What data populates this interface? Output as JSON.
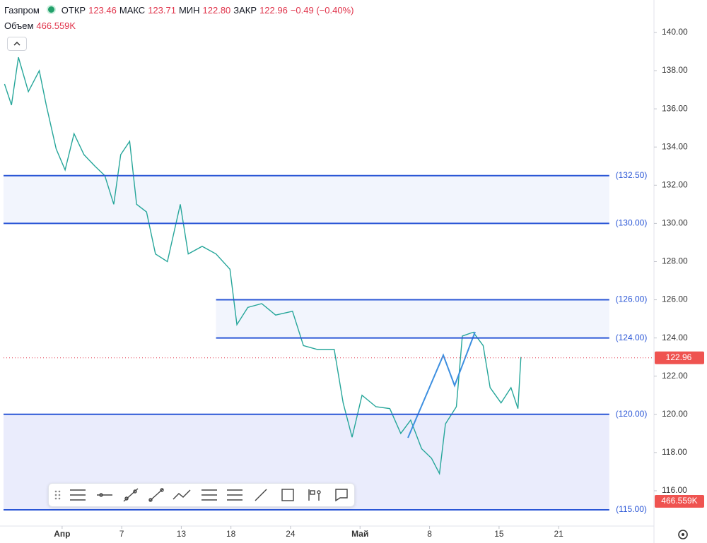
{
  "header": {
    "symbol": "Газпром",
    "open_label": "ОТКР",
    "open": "123.46",
    "high_label": "МАКС",
    "high": "123.71",
    "low_label": "МИН",
    "low": "122.80",
    "close_label": "ЗАКР",
    "close": "122.96",
    "change": "−0.49 (−0.40%)",
    "volume_label": "Объем",
    "volume": "466.559K"
  },
  "chart_data": {
    "type": "line",
    "color": "#26a69a",
    "x": [
      -4.8,
      -4.1,
      -3.4,
      -2.4,
      -1.3,
      -0.6,
      0.4,
      1.3,
      2.2,
      3.2,
      4.3,
      5.3,
      6.2,
      6.9,
      7.8,
      8.5,
      9.5,
      10.4,
      11.6,
      12.9,
      13.7,
      15.1,
      16.5,
      17.9,
      18.6,
      19.7,
      21.1,
      22.5,
      24.2,
      25.3,
      26.7,
      28.4,
      29.3,
      30.2,
      31.2,
      32.6,
      34.0,
      35.1,
      36.1,
      37.2,
      38.2,
      39.0,
      39.6,
      40.7,
      41.3,
      42.4,
      43.4,
      44.1,
      45.2,
      46.2,
      46.9,
      47.2
    ],
    "values": [
      137.3,
      136.2,
      138.7,
      136.9,
      138.0,
      136.2,
      133.9,
      132.8,
      134.7,
      133.6,
      133.0,
      132.5,
      131.0,
      133.6,
      134.3,
      131.0,
      130.6,
      128.4,
      128.0,
      131.0,
      128.4,
      128.8,
      128.4,
      127.6,
      124.7,
      125.6,
      125.8,
      125.2,
      125.4,
      123.6,
      123.4,
      123.4,
      120.6,
      118.8,
      121.0,
      120.4,
      120.3,
      119.0,
      119.7,
      118.2,
      117.7,
      116.9,
      119.5,
      120.4,
      124.1,
      124.3,
      123.6,
      121.4,
      120.6,
      121.4,
      120.3,
      123.0
    ],
    "xlim": [
      -4.9,
      60.6
    ],
    "xticks": [
      {
        "value": 1,
        "label": "Апр"
      },
      7,
      13,
      18,
      24,
      {
        "value": 31,
        "label": "Май"
      },
      {
        "value": 38,
        "label": "8"
      },
      {
        "value": 45,
        "label": "15"
      },
      {
        "value": 51,
        "label": "21"
      }
    ],
    "ylim": [
      114.15,
      141.7
    ],
    "yticks": [
      {
        "value": 116,
        "label": "116.00"
      },
      {
        "value": 118,
        "label": "118.00"
      },
      {
        "value": 120,
        "label": "120.00"
      },
      {
        "value": 122,
        "label": "122.00"
      },
      {
        "value": 124,
        "label": "124.00"
      },
      {
        "value": 126,
        "label": "126.00"
      },
      {
        "value": 128,
        "label": "128.00"
      },
      {
        "value": 130,
        "label": "130.00"
      },
      {
        "value": 132,
        "label": "132.00"
      },
      {
        "value": 134,
        "label": "134.00"
      },
      {
        "value": 136,
        "label": "136.00"
      },
      {
        "value": 138,
        "label": "138.00"
      },
      {
        "value": 140,
        "label": "140.00"
      }
    ],
    "levels": [
      {
        "value": 132.5,
        "label": "(132.50)",
        "start": -4.9,
        "end": 56.1
      },
      {
        "value": 130,
        "label": "(130.00)",
        "start": -4.9,
        "end": 56.1
      },
      {
        "value": 126,
        "label": "(126.00)",
        "start": 16.5,
        "end": 56.1
      },
      {
        "value": 124,
        "label": "(124.00)",
        "start": 16.5,
        "end": 56.1
      },
      {
        "value": 120,
        "label": "(120.00)",
        "start": -4.9,
        "end": 56.1
      },
      {
        "value": 115,
        "label": "(115.00)",
        "start": -4.9,
        "end": 56.1
      }
    ],
    "last": {
      "value": 122.96,
      "label": "122.96"
    },
    "volume_badge": "466.559K"
  }
}
